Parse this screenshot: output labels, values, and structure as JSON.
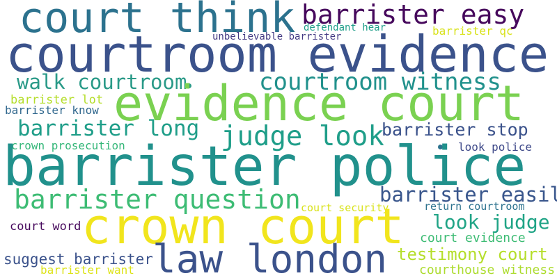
{
  "words": [
    {
      "text": "court think",
      "color": "#2c728e"
    },
    {
      "text": "barrister easy",
      "color": "#46085c"
    },
    {
      "text": "courtroom evidence",
      "color": "#3b528b"
    },
    {
      "text": "defendant hear",
      "color": "#1f9e89"
    },
    {
      "text": "unbelievable barrister",
      "color": "#443a83"
    },
    {
      "text": "barrister qc",
      "color": "#d8e219"
    },
    {
      "text": "walk courtroom",
      "color": "#2a9a88"
    },
    {
      "text": "courtroom witness",
      "color": "#21918c"
    },
    {
      "text": "evidence court",
      "color": "#7ad151"
    },
    {
      "text": "barrister lot",
      "color": "#b5de2b"
    },
    {
      "text": "barrister know",
      "color": "#31688e"
    },
    {
      "text": "barrister long",
      "color": "#1f9e89"
    },
    {
      "text": "judge look",
      "color": "#1f9e89"
    },
    {
      "text": "barrister stop",
      "color": "#3b528b"
    },
    {
      "text": "crown prosecution",
      "color": "#35b779"
    },
    {
      "text": "look police",
      "color": "#3e4989"
    },
    {
      "text": "barrister police",
      "color": "#21918c"
    },
    {
      "text": "barrister easily",
      "color": "#39568c"
    },
    {
      "text": "barrister question",
      "color": "#3dbc74"
    },
    {
      "text": "court security",
      "color": "#d8e219"
    },
    {
      "text": "return courtroom",
      "color": "#2c728e"
    },
    {
      "text": "crown court",
      "color": "#f1e51d"
    },
    {
      "text": "look judge",
      "color": "#20a486"
    },
    {
      "text": "court word",
      "color": "#46085c"
    },
    {
      "text": "court evidence",
      "color": "#3dbc74"
    },
    {
      "text": "testimony court",
      "color": "#b5de2b"
    },
    {
      "text": "suggest barrister",
      "color": "#3b528b"
    },
    {
      "text": "law london",
      "color": "#3b528b"
    },
    {
      "text": "barrister want",
      "color": "#dde318"
    },
    {
      "text": "courthouse witness",
      "color": "#addc30"
    }
  ]
}
